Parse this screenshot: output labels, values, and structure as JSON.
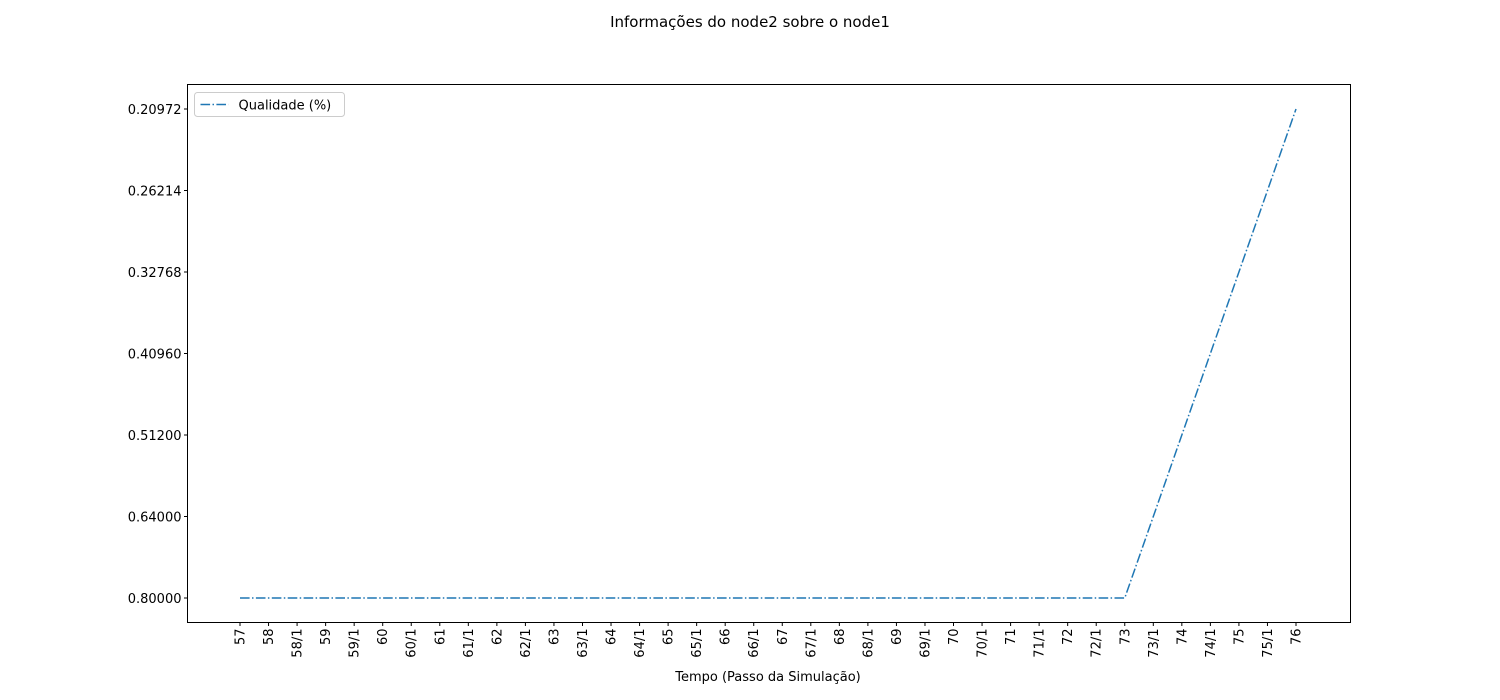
{
  "chart_data": {
    "type": "line",
    "title": "Informações do node2 sobre o node1",
    "xlabel": "Tempo (Passo da Simulação)",
    "categories": [
      "57",
      "58",
      "58/1",
      "59",
      "59/1",
      "60",
      "60/1",
      "61",
      "61/1",
      "62",
      "62/1",
      "63",
      "63/1",
      "64",
      "64/1",
      "65",
      "65/1",
      "66",
      "66/1",
      "67",
      "67/1",
      "68",
      "68/1",
      "69",
      "69/1",
      "70",
      "70/1",
      "71",
      "71/1",
      "72",
      "72/1",
      "73",
      "73/1",
      "74",
      "74/1",
      "75",
      "75/1",
      "76"
    ],
    "y_scale": "categorical",
    "yticks": [
      {
        "value": 0.8,
        "label": "0.80000"
      },
      {
        "value": 0.64,
        "label": "0.64000"
      },
      {
        "value": 0.512,
        "label": "0.51200"
      },
      {
        "value": 0.4096,
        "label": "0.40960"
      },
      {
        "value": 0.32768,
        "label": "0.32768"
      },
      {
        "value": 0.26214,
        "label": "0.26214"
      },
      {
        "value": 0.20972,
        "label": "0.20972"
      }
    ],
    "series": [
      {
        "name": "Qualidade (%)",
        "color": "#1f77b4",
        "linestyle": "dashdot",
        "values": [
          0.8,
          0.8,
          0.8,
          0.8,
          0.8,
          0.8,
          0.8,
          0.8,
          0.8,
          0.8,
          0.8,
          0.8,
          0.8,
          0.8,
          0.8,
          0.8,
          0.8,
          0.8,
          0.8,
          0.8,
          0.8,
          0.8,
          0.8,
          0.8,
          0.8,
          0.8,
          0.8,
          0.8,
          0.8,
          0.8,
          0.8,
          0.8,
          0.64,
          0.512,
          0.4096,
          0.32768,
          0.26214,
          0.20972
        ]
      }
    ],
    "legend": "upper left",
    "grid": false
  }
}
